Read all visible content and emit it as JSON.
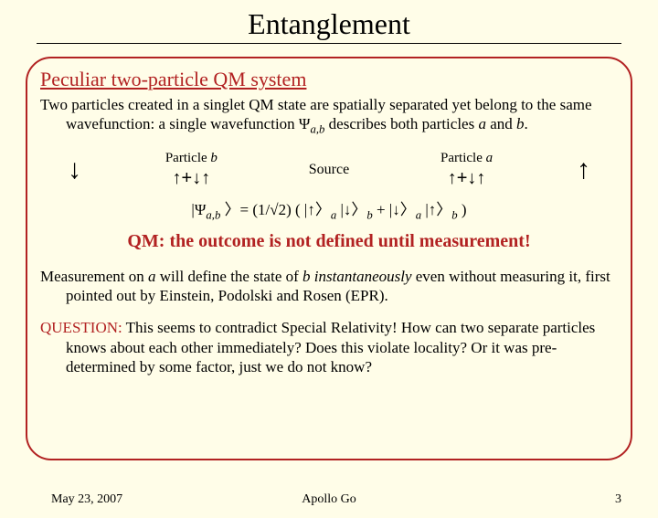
{
  "slide": {
    "title": "Entanglement",
    "subtitle": "Peculiar two-particle QM system",
    "intro_html": "Two particles created in a singlet QM state are spatially separated yet belong to the same wavefunction: a single wavefunction Ψ<span class='sub'>a,b</span> describes both particles <span class='italic'>a</span> and <span class='italic'>b</span>.",
    "qm_outcome": "QM: the outcome is  not defined until measurement!",
    "measure_html": "Measurement on <span class='italic'>a</span> will define the state of <span class='italic'>b</span> <span class='italic'>instantaneously</span> even without measuring it, first pointed out by Einstein, Podolski and Rosen (EPR).",
    "question_html": "<span class='red'>QUESTION:</span> This seems to contradict Special Relativity! How can two separate particles knows about each other immediately? Does this violate locality? Or it was pre-determined by some factor, just we do not know?",
    "equation_html": "|Ψ<span class='sub'>a,b</span> 〉= (1/√2) ( |<span class='arrow-inline'>↑</span>〉<span class='sub'>a</span> |<span class='arrow-inline'>↓</span>〉<span class='sub'>b</span>  + |<span class='arrow-inline'>↓</span>〉<span class='sub'>a</span> |<span class='arrow-inline'>↑</span>〉<span class='sub'>b</span> )"
  },
  "diagram": {
    "left_outer_arrow": "↓",
    "left_label_html": "Particle <span class='italic'>b</span>",
    "left_state": "↑+↓↑",
    "source_label": "Source",
    "right_label_html": "Particle <span class='italic'>a</span>",
    "right_state": "↑+↓↑",
    "right_outer_arrow": "↑"
  },
  "footer": {
    "date": "May 23, 2007",
    "author": "Apollo Go",
    "page": "3"
  },
  "colors": {
    "background": "#fffde8",
    "accent": "#b22222",
    "text": "#000000"
  }
}
